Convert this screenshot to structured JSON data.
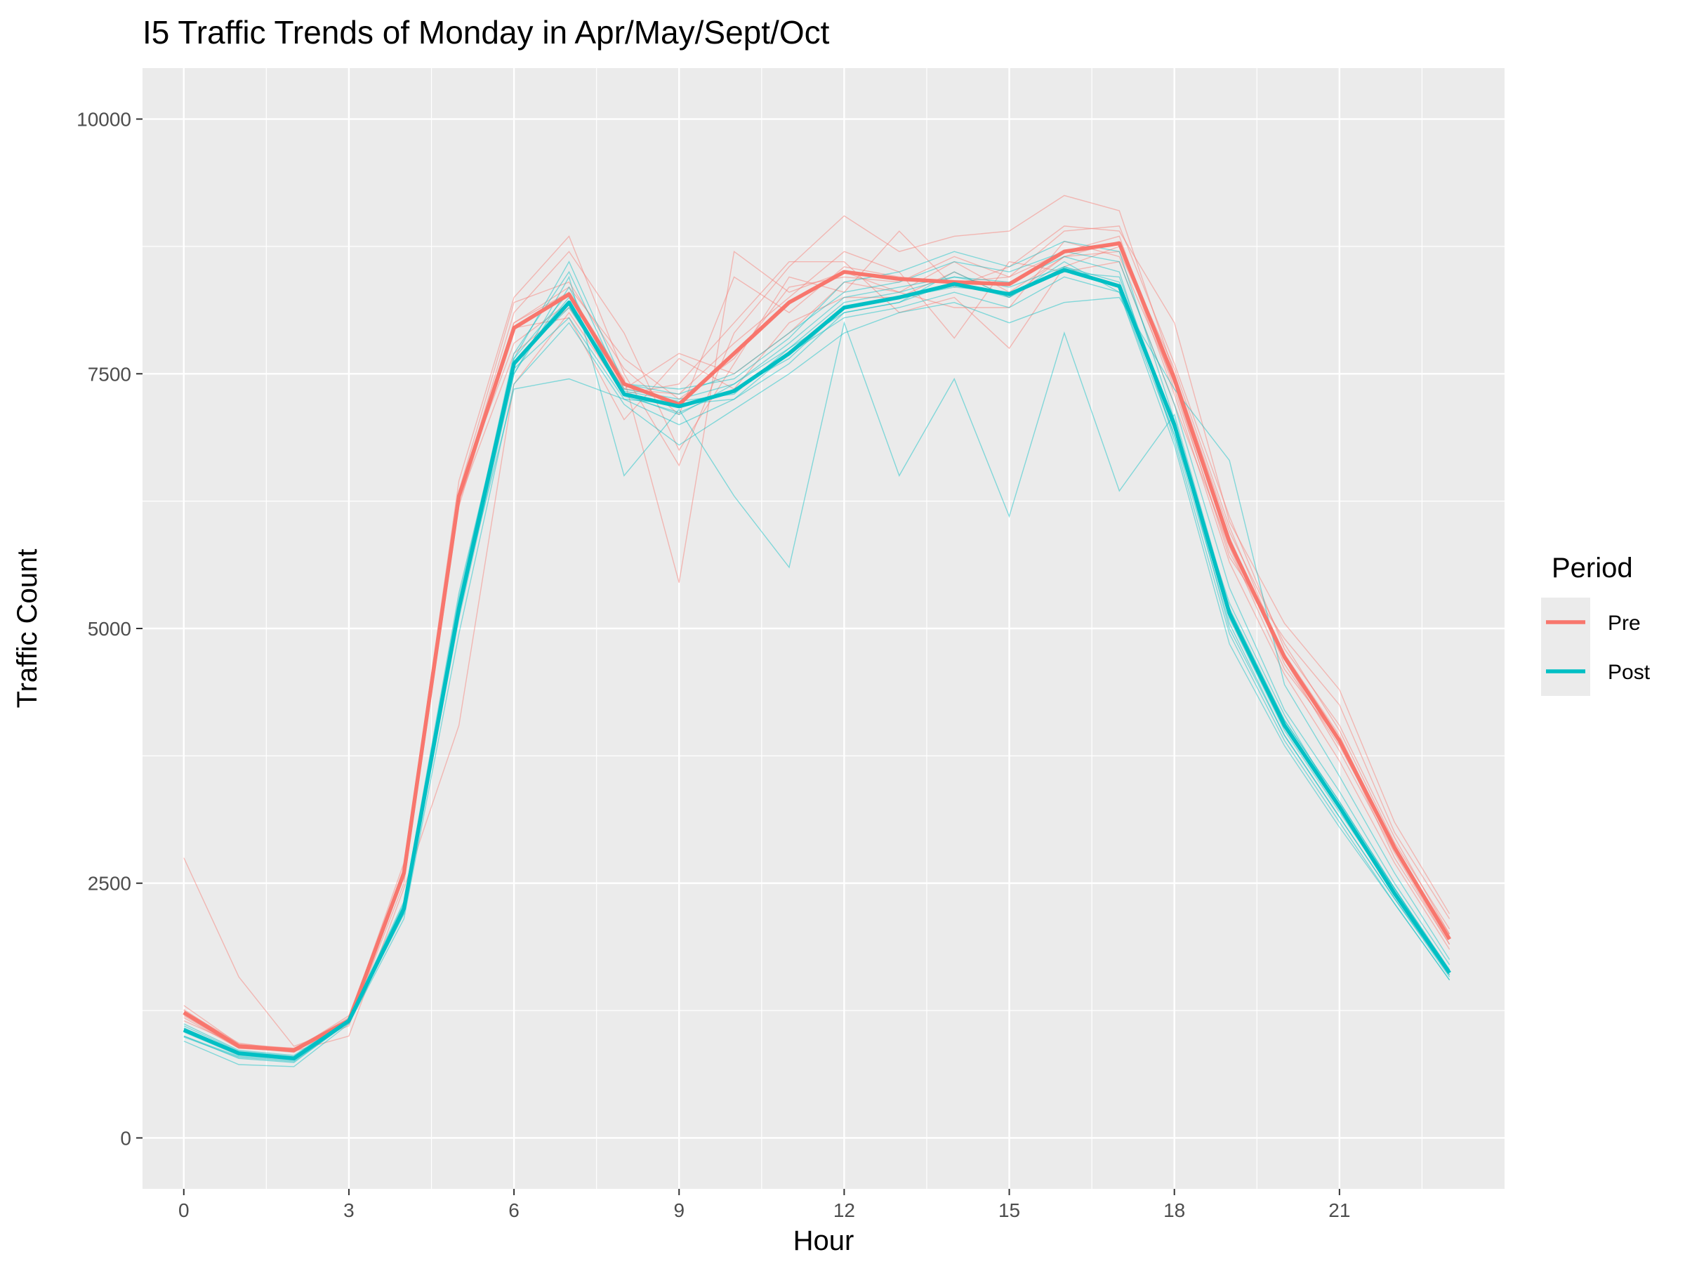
{
  "chart_data": {
    "type": "line",
    "title": "I5 Traffic Trends of Monday in Apr/May/Sept/Oct",
    "xlabel": "Hour",
    "ylabel": "Traffic Count",
    "xlim": [
      -0.75,
      24.0
    ],
    "ylim": [
      -500,
      10500
    ],
    "x_ticks": [
      0,
      3,
      6,
      9,
      12,
      15,
      18,
      21
    ],
    "x_tick_labels": [
      "0",
      "3",
      "6",
      "9",
      "12",
      "15",
      "18",
      "21"
    ],
    "y_ticks": [
      0,
      2500,
      5000,
      7500,
      10000
    ],
    "y_tick_labels": [
      "0",
      "2500",
      "5000",
      "7500",
      "10000"
    ],
    "grid": true,
    "legend": {
      "title": "Period",
      "position": "right",
      "entries": [
        {
          "label": "Pre",
          "color": "#F8766D"
        },
        {
          "label": "Post",
          "color": "#00BFC4"
        }
      ]
    },
    "x": [
      0,
      1,
      2,
      3,
      4,
      5,
      6,
      7,
      8,
      9,
      10,
      11,
      12,
      13,
      14,
      15,
      16,
      17,
      18,
      19,
      20,
      21,
      22,
      23
    ],
    "series": [
      {
        "name": "Pre",
        "color": "#F8766D",
        "values": [
          1230,
          900,
          860,
          1150,
          2600,
          6300,
          7950,
          8280,
          7400,
          7200,
          7700,
          8200,
          8500,
          8430,
          8400,
          8380,
          8700,
          8780,
          7450,
          5850,
          4720,
          3900,
          2850,
          1950
        ]
      },
      {
        "name": "Post",
        "color": "#00BFC4",
        "values": [
          1060,
          830,
          780,
          1150,
          2250,
          5200,
          7600,
          8200,
          7300,
          7180,
          7330,
          7700,
          8150,
          8250,
          8380,
          8280,
          8520,
          8360,
          7000,
          5150,
          4050,
          3250,
          2400,
          1620
        ]
      }
    ],
    "daily_traces": {
      "description_free": true,
      "pre": [
        [
          1300,
          920,
          880,
          1120,
          2650,
          6450,
          8250,
          8850,
          7500,
          6600,
          7900,
          8550,
          9050,
          8700,
          8850,
          8900,
          9250,
          9100,
          7500,
          5950,
          4850,
          4000,
          2900,
          2050
        ],
        [
          2750,
          1580,
          900,
          1100,
          2500,
          6200,
          8000,
          8300,
          7450,
          5450,
          8700,
          8300,
          8500,
          8300,
          8150,
          8150,
          8800,
          8650,
          7400,
          5700,
          4900,
          4250,
          3000,
          2150
        ],
        [
          1200,
          880,
          850,
          1000,
          2450,
          4050,
          7400,
          8100,
          7300,
          7400,
          8000,
          8600,
          8600,
          8100,
          8250,
          7750,
          8550,
          8750,
          7550,
          6000,
          4700,
          3800,
          2800,
          1900
        ],
        [
          1150,
          910,
          870,
          1180,
          2550,
          6350,
          7800,
          8200,
          7350,
          7300,
          7800,
          8250,
          8700,
          8500,
          7850,
          8600,
          8500,
          8600,
          7200,
          5800,
          4600,
          3900,
          2750,
          1900
        ],
        [
          1230,
          890,
          840,
          1160,
          2700,
          6300,
          8100,
          8700,
          7900,
          6750,
          7600,
          8450,
          8300,
          8900,
          8350,
          8550,
          8950,
          8900,
          8000,
          6050,
          5050,
          4400,
          3100,
          2200
        ],
        [
          1250,
          930,
          860,
          1200,
          2600,
          6250,
          7700,
          8150,
          7350,
          7700,
          7500,
          7900,
          8400,
          8300,
          8600,
          8300,
          8650,
          8800,
          7300,
          5650,
          4550,
          3700,
          2700,
          1850
        ],
        [
          1220,
          900,
          870,
          1140,
          2620,
          6350,
          8200,
          8400,
          7550,
          7100,
          8450,
          8100,
          8550,
          8450,
          8400,
          8450,
          8900,
          8950,
          7600,
          6100,
          4800,
          4050,
          2950,
          2000
        ],
        [
          1180,
          880,
          850,
          1130,
          2580,
          6280,
          7950,
          8050,
          7050,
          7650,
          7350,
          8000,
          8250,
          8250,
          8500,
          8250,
          8650,
          8700,
          7500,
          5900,
          4650,
          3850,
          2850,
          1950
        ],
        [
          1260,
          910,
          880,
          1170,
          2610,
          6320,
          8000,
          8350,
          7650,
          7250,
          7650,
          8350,
          8450,
          8400,
          8650,
          8450,
          8700,
          8850,
          7350,
          5750,
          4750,
          3950,
          2850,
          2000
        ]
      ],
      "post": [
        [
          1100,
          850,
          800,
          1160,
          2300,
          5300,
          7650,
          8600,
          7400,
          7300,
          7500,
          7900,
          8300,
          8400,
          8600,
          8500,
          8700,
          8600,
          7200,
          5400,
          4200,
          3400,
          2500,
          1700
        ],
        [
          1000,
          780,
          740,
          1140,
          2200,
          5100,
          7500,
          8450,
          6500,
          7150,
          6300,
          5600,
          8000,
          6500,
          7450,
          6100,
          7900,
          6350,
          7100,
          5200,
          4100,
          3300,
          2450,
          1650
        ],
        [
          1050,
          820,
          770,
          1150,
          2250,
          5200,
          7350,
          7450,
          7250,
          7000,
          7250,
          7600,
          8100,
          8200,
          8500,
          8250,
          8550,
          8400,
          6900,
          5050,
          3950,
          3150,
          2350,
          1600
        ],
        [
          950,
          720,
          700,
          1120,
          2150,
          4950,
          7400,
          8000,
          7200,
          6800,
          7150,
          7500,
          7900,
          8100,
          8200,
          8000,
          8200,
          8250,
          7350,
          6650,
          4450,
          3550,
          2600,
          1750
        ],
        [
          1080,
          840,
          790,
          1160,
          2280,
          5250,
          7700,
          8500,
          7350,
          7250,
          7400,
          7800,
          8250,
          8350,
          8450,
          8400,
          8650,
          8500,
          6850,
          4950,
          3900,
          3100,
          2300,
          1550
        ],
        [
          1120,
          860,
          810,
          1170,
          2320,
          5350,
          7600,
          8250,
          7400,
          7350,
          7450,
          7850,
          8400,
          8500,
          8700,
          8550,
          8800,
          8700,
          7050,
          5150,
          4100,
          3300,
          2450,
          1650
        ],
        [
          1000,
          800,
          760,
          1140,
          2200,
          5150,
          7550,
          8050,
          7250,
          7200,
          7250,
          7700,
          8050,
          8150,
          8300,
          8150,
          8450,
          8300,
          6800,
          4850,
          3850,
          3050,
          2300,
          1550
        ],
        [
          1070,
          830,
          780,
          1150,
          2260,
          5220,
          7650,
          8300,
          7300,
          7100,
          7400,
          7750,
          8200,
          8300,
          8450,
          8350,
          8550,
          8350,
          6950,
          5100,
          4000,
          3200,
          2400,
          1600
        ],
        [
          990,
          790,
          750,
          1130,
          2230,
          5180,
          7500,
          8350,
          7280,
          7120,
          7350,
          7650,
          8150,
          8250,
          8350,
          8300,
          8500,
          8450,
          7000,
          5000,
          3950,
          3150,
          2350,
          1580
        ],
        [
          1040,
          810,
          770,
          1150,
          2270,
          5230,
          7620,
          8150,
          7330,
          7230,
          7300,
          7750,
          8100,
          8200,
          8400,
          8250,
          8600,
          8300,
          6900,
          5250,
          4150,
          3250,
          2450,
          1620
        ]
      ]
    }
  }
}
